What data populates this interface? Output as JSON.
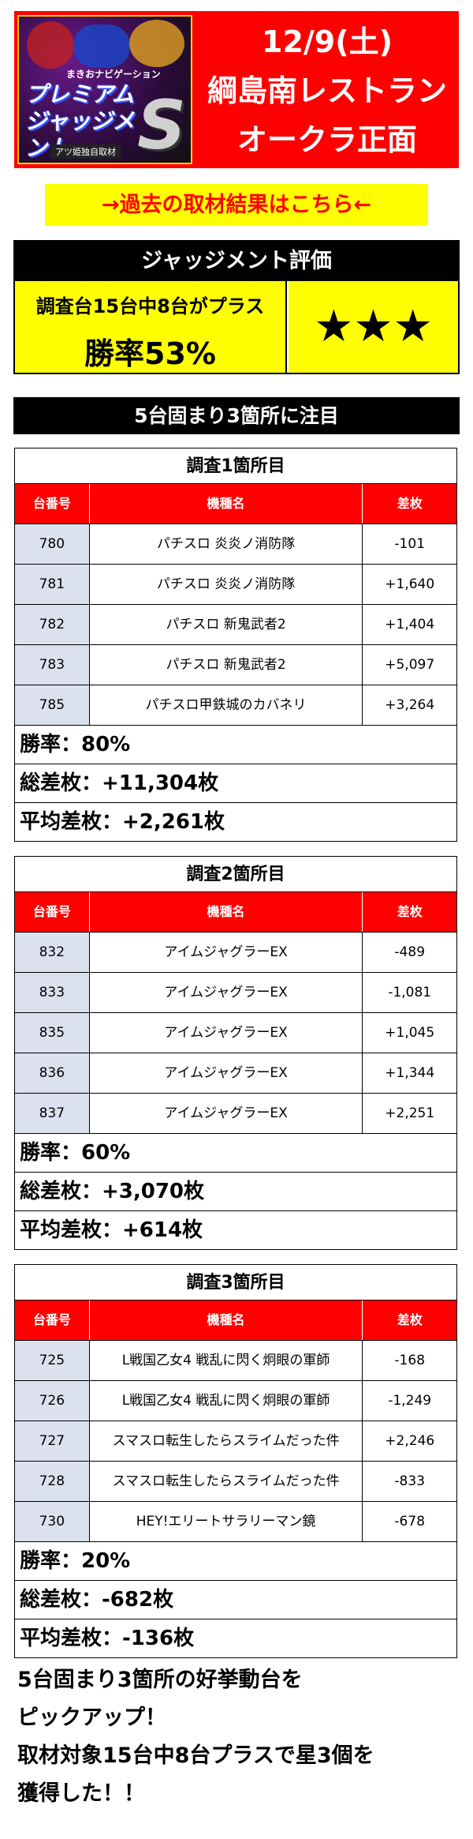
{
  "header": {
    "date": "12/9(土)",
    "venue": "綱島南レストラン",
    "location": "オークラ正面",
    "logo": {
      "top": "まきおナビゲーション",
      "title_line1": "プレミアム",
      "title_line2": "ジャッジメント",
      "s": "S",
      "sub": "アツ姫独自取材"
    }
  },
  "link": {
    "label": "→過去の取材結果はこちら←"
  },
  "evaluation": {
    "heading": "ジャッジメント評価",
    "line1": "調査台15台中8台がプラス",
    "line2": "勝率53%",
    "stars": "★★★"
  },
  "section_title": "5台固まり3箇所に注目",
  "columns": {
    "number": "台番号",
    "machine": "機種名",
    "diff": "差枚"
  },
  "surveys": [
    {
      "title": "調査1箇所目",
      "rows": [
        {
          "number": "780",
          "machine": "パチスロ 炎炎ノ消防隊",
          "diff": "-101"
        },
        {
          "number": "781",
          "machine": "パチスロ 炎炎ノ消防隊",
          "diff": "+1,640"
        },
        {
          "number": "782",
          "machine": "パチスロ 新鬼武者2",
          "diff": "+1,404"
        },
        {
          "number": "783",
          "machine": "パチスロ 新鬼武者2",
          "diff": "+5,097"
        },
        {
          "number": "785",
          "machine": "パチスロ甲鉄城のカバネリ",
          "diff": "+3,264"
        }
      ],
      "win_rate": "勝率：80%",
      "total": "総差枚：+11,304枚",
      "average": "平均差枚：+2,261枚"
    },
    {
      "title": "調査2箇所目",
      "rows": [
        {
          "number": "832",
          "machine": "アイムジャグラーEX",
          "diff": "-489"
        },
        {
          "number": "833",
          "machine": "アイムジャグラーEX",
          "diff": "-1,081"
        },
        {
          "number": "835",
          "machine": "アイムジャグラーEX",
          "diff": "+1,045"
        },
        {
          "number": "836",
          "machine": "アイムジャグラーEX",
          "diff": "+1,344"
        },
        {
          "number": "837",
          "machine": "アイムジャグラーEX",
          "diff": "+2,251"
        }
      ],
      "win_rate": "勝率：60%",
      "total": "総差枚：+3,070枚",
      "average": "平均差枚：+614枚"
    },
    {
      "title": "調査3箇所目",
      "rows": [
        {
          "number": "725",
          "machine": "L戦国乙女4 戦乱に閃く炯眼の軍師",
          "diff": "-168"
        },
        {
          "number": "726",
          "machine": "L戦国乙女4 戦乱に閃く炯眼の軍師",
          "diff": "-1,249"
        },
        {
          "number": "727",
          "machine": "スマスロ転生したらスライムだった件",
          "diff": "+2,246"
        },
        {
          "number": "728",
          "machine": "スマスロ転生したらスライムだった件",
          "diff": "-833"
        },
        {
          "number": "730",
          "machine": "HEY!エリートサラリーマン鏡",
          "diff": "-678"
        }
      ],
      "win_rate": "勝率：20%",
      "total": "総差枚：-682枚",
      "average": "平均差枚：-136枚"
    }
  ],
  "summary": {
    "line1": "5台固まり3箇所の好挙動台を",
    "line2": "ピックアップ！",
    "line3": "取材対象15台中8台プラスで星3個を",
    "line4": "獲得した！！"
  },
  "colors": {
    "accent": "#ff0000",
    "highlight": "#ffff00",
    "row_number_bg": "#dbe1ef"
  }
}
